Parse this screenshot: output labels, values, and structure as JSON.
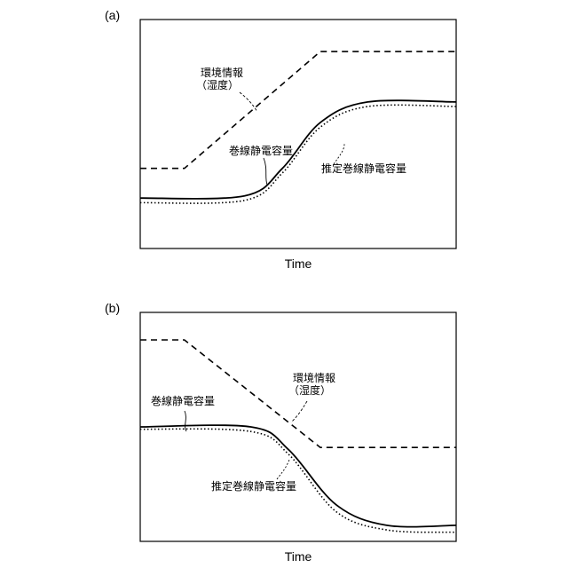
{
  "chart_data": [
    {
      "type": "line",
      "panel_label": "(a)",
      "xlabel": "Time",
      "ylabel": "",
      "series": [
        {
          "key": "env",
          "style": "dashed",
          "points": [
            [
              0,
              0.35
            ],
            [
              0.14,
              0.35
            ],
            [
              0.57,
              0.86
            ],
            [
              1,
              0.86
            ]
          ]
        },
        {
          "key": "wind",
          "style": "solid",
          "points": [
            [
              0,
              0.22
            ],
            [
              0.33,
              0.23
            ],
            [
              0.45,
              0.35
            ],
            [
              0.57,
              0.55
            ],
            [
              0.72,
              0.64
            ],
            [
              1,
              0.64
            ]
          ]
        },
        {
          "key": "est",
          "style": "dotted",
          "points": [
            [
              0,
              0.2
            ],
            [
              0.33,
              0.21
            ],
            [
              0.45,
              0.33
            ],
            [
              0.57,
              0.53
            ],
            [
              0.72,
              0.62
            ],
            [
              1,
              0.62
            ]
          ]
        }
      ],
      "annotations": {
        "env_line1": "環境情報",
        "env_line2": "（湿度）",
        "wind": "巻線静電容量",
        "est": "推定巻線静電容量"
      }
    },
    {
      "type": "line",
      "panel_label": "(b)",
      "xlabel": "Time",
      "ylabel": "",
      "series": [
        {
          "key": "env",
          "style": "dashed",
          "points": [
            [
              0,
              0.88
            ],
            [
              0.14,
              0.88
            ],
            [
              0.57,
              0.41
            ],
            [
              1,
              0.41
            ]
          ]
        },
        {
          "key": "wind",
          "style": "solid",
          "points": [
            [
              0,
              0.5
            ],
            [
              0.35,
              0.5
            ],
            [
              0.47,
              0.4
            ],
            [
              0.62,
              0.16
            ],
            [
              0.78,
              0.07
            ],
            [
              1,
              0.07
            ]
          ]
        },
        {
          "key": "est",
          "style": "dotted",
          "points": [
            [
              0,
              0.49
            ],
            [
              0.35,
              0.48
            ],
            [
              0.47,
              0.38
            ],
            [
              0.62,
              0.13
            ],
            [
              0.78,
              0.05
            ],
            [
              1,
              0.04
            ]
          ]
        }
      ],
      "annotations": {
        "env_line1": "環境情報",
        "env_line2": "（湿度）",
        "wind": "巻線静電容量",
        "est": "推定巻線静電容量"
      }
    }
  ]
}
